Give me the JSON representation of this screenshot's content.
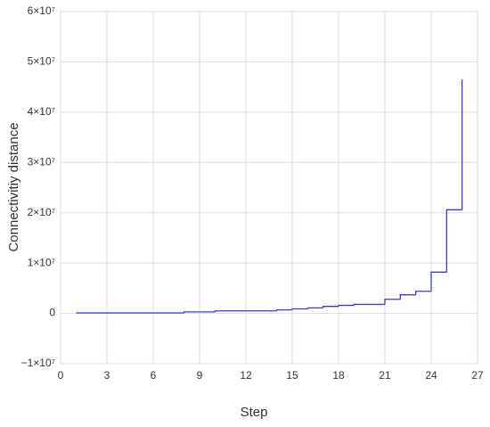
{
  "chart_data": {
    "type": "step",
    "xlabel": "Step",
    "ylabel": "Connectivitiy distance",
    "x": [
      1,
      2,
      3,
      4,
      5,
      6,
      7,
      8,
      9,
      10,
      11,
      12,
      13,
      14,
      15,
      16,
      17,
      18,
      19,
      20,
      21,
      22,
      23,
      24,
      25,
      26
    ],
    "series": [
      {
        "color": "#3c3cc0",
        "values": [
          100000,
          100000,
          100000,
          100000,
          100000,
          100000,
          100000,
          300000,
          300000,
          500000,
          500000,
          500000,
          500000,
          700000,
          900000,
          1100000,
          1400000,
          1600000,
          1800000,
          1800000,
          2800000,
          3700000,
          4400000,
          8200000,
          20600000,
          46500000
        ]
      }
    ],
    "xlim": [
      0,
      27
    ],
    "xticks": [
      0,
      3,
      6,
      9,
      12,
      15,
      18,
      21,
      24,
      27
    ],
    "ylim": [
      -10000000,
      60000000
    ],
    "yticks": [
      {
        "value": -10000000,
        "label": "−1×10⁷"
      },
      0,
      {
        "value": 10000000,
        "label": "1×10⁷"
      },
      {
        "value": 20000000,
        "label": "2×10⁷"
      },
      {
        "value": 30000000,
        "label": "3×10⁷"
      },
      {
        "value": 40000000,
        "label": "4×10⁷"
      },
      {
        "value": 50000000,
        "label": "5×10⁷"
      },
      {
        "value": 60000000,
        "label": "6×10⁷"
      }
    ],
    "grid": true
  }
}
